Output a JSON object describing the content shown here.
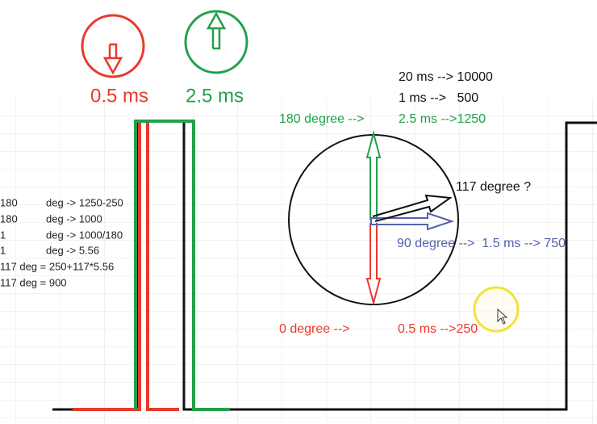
{
  "pulse_labels": {
    "min": "0.5 ms",
    "max": "2.5 ms"
  },
  "scale": [
    "20 ms --> 10000",
    "1 ms -->   500"
  ],
  "angles": [
    {
      "degree": "180 degree -->",
      "value": "2.5 ms -->1250"
    },
    {
      "degree": "0 degree -->",
      "value": "0.5 ms -->250"
    }
  ],
  "middle": "90 degree -->  1.5 ms --> 750",
  "question": "117 degree ?",
  "calc": [
    [
      "180",
      "deg -> 1250-250"
    ],
    [
      "180",
      "deg -> 1000"
    ],
    [
      "1",
      "deg -> 1000/180"
    ],
    [
      "1",
      "deg -> 5.56"
    ],
    [
      "117 deg = 250+117*5.56"
    ],
    [
      "117 deg = 900"
    ]
  ]
}
